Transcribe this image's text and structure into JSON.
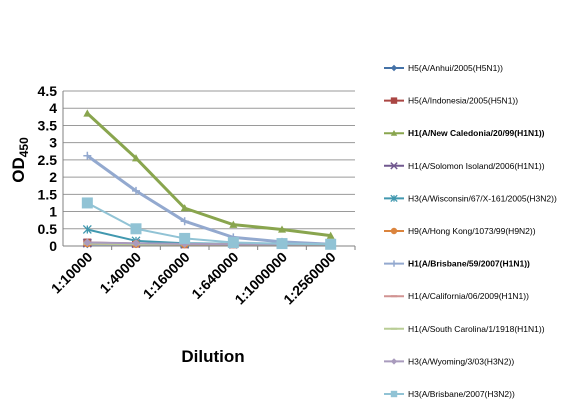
{
  "chart_data": {
    "type": "line",
    "title": "",
    "xlabel": "Dilution",
    "ylabel_main": "OD",
    "ylabel_sub": "450",
    "categories": [
      "1:10000",
      "1:40000",
      "1:160000",
      "1:640000",
      "1:1000000",
      "1:2560000"
    ],
    "y_ticks": [
      "0",
      "0.5",
      "1",
      "1.5",
      "2",
      "2.5",
      "3",
      "3.5",
      "4",
      "4.5"
    ],
    "ylim": [
      0,
      4.5
    ],
    "grid": true,
    "legend_position": "right",
    "series": [
      {
        "name": "H5(A/Anhui/2005(H5N1))",
        "color": "#4572A7",
        "marker": "diamond",
        "bold": false,
        "values": [
          0.05,
          0.05,
          0.05,
          0.05,
          0.05,
          0.05
        ]
      },
      {
        "name": "H5(A/Indonesia/2005(H5N1))",
        "color": "#AA4643",
        "marker": "square",
        "bold": false,
        "values": [
          0.1,
          0.07,
          0.05,
          0.05,
          0.05,
          0.05
        ]
      },
      {
        "name": "H1(A/New Caledonia/20/99(H1N1))",
        "color": "#89A54E",
        "marker": "triangle",
        "bold": true,
        "values": [
          3.85,
          2.55,
          1.1,
          0.62,
          0.48,
          0.3
        ]
      },
      {
        "name": "H1(A/Solomon Isoland/2006(H1N1))",
        "color": "#71588F",
        "marker": "x",
        "bold": false,
        "values": [
          0.08,
          0.07,
          0.05,
          0.05,
          0.05,
          0.05
        ]
      },
      {
        "name": "H3(A/Wisconsin/67/X-161/2005(H3N2))",
        "color": "#4198AF",
        "marker": "star",
        "bold": false,
        "values": [
          0.48,
          0.15,
          0.08,
          0.06,
          0.05,
          0.05
        ]
      },
      {
        "name": "H9(A/Hong Kong/1073/99(H9N2))",
        "color": "#DB843D",
        "marker": "circle",
        "bold": false,
        "values": [
          0.08,
          0.06,
          0.05,
          0.05,
          0.05,
          0.05
        ]
      },
      {
        "name": "H1(A/Brisbane/59/2007(H1N1))",
        "color": "#93A9CF",
        "marker": "plus",
        "bold": true,
        "values": [
          2.62,
          1.6,
          0.72,
          0.25,
          0.12,
          0.05
        ]
      },
      {
        "name": "H1(A/California/06/2009(H1N1))",
        "color": "#D19392",
        "marker": "dash",
        "bold": false,
        "values": [
          0.06,
          0.05,
          0.05,
          0.05,
          0.05,
          0.05
        ]
      },
      {
        "name": "H1(A/South Carolina/1/1918(H1N1))",
        "color": "#B9CD96",
        "marker": "dash",
        "bold": false,
        "values": [
          0.07,
          0.05,
          0.05,
          0.05,
          0.05,
          0.05
        ]
      },
      {
        "name": "H3(A/Wyoming/3/03(H3N2))",
        "color": "#A99BBD",
        "marker": "diamond",
        "bold": false,
        "values": [
          0.1,
          0.08,
          0.06,
          0.05,
          0.05,
          0.05
        ]
      },
      {
        "name": "H3(A/Brisbane/2007(H3N2))",
        "color": "#91C3D5",
        "marker": "square",
        "bold": false,
        "values": [
          1.25,
          0.5,
          0.22,
          0.1,
          0.07,
          0.05
        ]
      }
    ]
  }
}
